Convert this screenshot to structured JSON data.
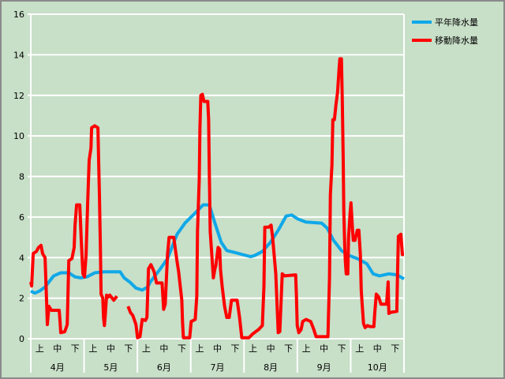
{
  "chart_data": {
    "type": "line",
    "title": "",
    "xlabel": "",
    "ylabel": "",
    "ylim": [
      0,
      16
    ],
    "yticks": [
      "0",
      "2",
      "4",
      "6",
      "8",
      "10",
      "12",
      "14",
      "16"
    ],
    "xlim_days": [
      0,
      214
    ],
    "months": [
      "4月",
      "5月",
      "6月",
      "7月",
      "8月",
      "9月",
      "10月"
    ],
    "periods": [
      "上",
      "中",
      "下"
    ],
    "grid": true,
    "legend_position": "top-right",
    "series": [
      {
        "name": "平年降水量",
        "color": "#10a8e8",
        "points": [
          [
            0,
            2.35
          ],
          [
            2.3,
            2.25
          ],
          [
            5,
            2.35
          ],
          [
            8.2,
            2.55
          ],
          [
            10.4,
            2.8
          ],
          [
            13.1,
            3.1
          ],
          [
            17.2,
            3.25
          ],
          [
            21.8,
            3.25
          ],
          [
            25.4,
            3.05
          ],
          [
            28.6,
            3.0
          ],
          [
            32.2,
            3.05
          ],
          [
            36.7,
            3.25
          ],
          [
            42.2,
            3.3
          ],
          [
            51.2,
            3.3
          ],
          [
            53.5,
            3.0
          ],
          [
            56.7,
            2.8
          ],
          [
            60.3,
            2.5
          ],
          [
            63.9,
            2.4
          ],
          [
            67.1,
            2.55
          ],
          [
            68.5,
            2.8
          ],
          [
            73.9,
            3.4
          ],
          [
            78.4,
            3.95
          ],
          [
            83.9,
            5.15
          ],
          [
            88.4,
            5.7
          ],
          [
            94.3,
            6.2
          ],
          [
            98.8,
            6.6
          ],
          [
            102.4,
            6.6
          ],
          [
            105.6,
            5.7
          ],
          [
            109.2,
            4.75
          ],
          [
            112.4,
            4.35
          ],
          [
            117,
            4.25
          ],
          [
            121.5,
            4.15
          ],
          [
            126,
            4.05
          ],
          [
            128.3,
            4.1
          ],
          [
            132.8,
            4.3
          ],
          [
            137.4,
            4.75
          ],
          [
            141.9,
            5.35
          ],
          [
            146.4,
            6.05
          ],
          [
            149.6,
            6.1
          ],
          [
            153.2,
            5.9
          ],
          [
            157.8,
            5.75
          ],
          [
            166.8,
            5.7
          ],
          [
            170,
            5.45
          ],
          [
            173.6,
            4.85
          ],
          [
            178.1,
            4.35
          ],
          [
            182.7,
            4.1
          ],
          [
            187.2,
            3.95
          ],
          [
            192.7,
            3.7
          ],
          [
            196.3,
            3.2
          ],
          [
            199.9,
            3.1
          ],
          [
            205.3,
            3.2
          ],
          [
            209.9,
            3.15
          ],
          [
            214,
            2.95
          ]
        ]
      },
      {
        "name": "移動降水量",
        "color": "#ff0000",
        "points": [
          [
            0,
            2.8
          ],
          [
            0.5,
            2.6
          ],
          [
            1.4,
            4.2
          ],
          [
            3.2,
            4.3
          ],
          [
            4.5,
            4.5
          ],
          [
            5.9,
            4.6
          ],
          [
            6.8,
            4.2
          ],
          [
            8.2,
            4.0
          ],
          [
            9.1,
            1.8
          ],
          [
            9.5,
            0.7
          ],
          [
            10.4,
            1.6
          ],
          [
            11.8,
            1.4
          ],
          [
            16.3,
            1.4
          ],
          [
            16.8,
            0.85
          ],
          [
            17.2,
            0.3
          ],
          [
            19.5,
            0.35
          ],
          [
            20.9,
            0.7
          ],
          [
            21.8,
            3.85
          ],
          [
            23.6,
            3.95
          ],
          [
            24.9,
            4.5
          ],
          [
            25.4,
            5.6
          ],
          [
            26.3,
            6.6
          ],
          [
            28.1,
            6.6
          ],
          [
            29,
            4.75
          ],
          [
            29.9,
            3.2
          ],
          [
            30.8,
            3.05
          ],
          [
            31.7,
            4.15
          ],
          [
            32.6,
            6.7
          ],
          [
            33.5,
            8.8
          ],
          [
            34.5,
            9.4
          ],
          [
            34.9,
            10.4
          ],
          [
            36.7,
            10.5
          ],
          [
            38.5,
            10.4
          ],
          [
            39.4,
            6.9
          ],
          [
            39.9,
            4.55
          ],
          [
            40.3,
            2.2
          ],
          [
            41.3,
            2.0
          ],
          [
            41.7,
            1.05
          ],
          [
            42.2,
            0.65
          ],
          [
            42.6,
            1.05
          ],
          [
            43.5,
            2.15
          ],
          [
            44.4,
            2.05
          ],
          [
            45.3,
            2.15
          ],
          [
            47.6,
            1.9
          ],
          [
            49.4,
            2.1
          ],
          null,
          [
            55.8,
            1.6
          ],
          [
            57.1,
            1.3
          ],
          [
            58.5,
            1.15
          ],
          [
            60.3,
            0.7
          ],
          [
            61.2,
            0.05
          ],
          [
            62.6,
            0.1
          ],
          [
            63.9,
            0.95
          ],
          [
            65.7,
            0.9
          ],
          [
            66.6,
            1.05
          ],
          [
            67.5,
            3.45
          ],
          [
            68.9,
            3.65
          ],
          [
            70.7,
            3.3
          ],
          [
            72.1,
            2.75
          ],
          [
            75.3,
            2.75
          ],
          [
            76.2,
            1.45
          ],
          [
            77.1,
            1.7
          ],
          [
            78.4,
            4.15
          ],
          [
            79.3,
            5.0
          ],
          [
            82,
            5.0
          ],
          [
            83.9,
            3.8
          ],
          [
            84.8,
            3.3
          ],
          [
            86.6,
            1.9
          ],
          [
            87,
            0.85
          ],
          [
            87.5,
            0.05
          ],
          [
            91.1,
            0.05
          ],
          [
            92,
            0.85
          ],
          [
            94.3,
            0.95
          ],
          [
            95.2,
            2.1
          ],
          [
            95.6,
            5.3
          ],
          [
            96.6,
            7.85
          ],
          [
            97,
            10.4
          ],
          [
            97.5,
            12.0
          ],
          [
            98.4,
            12.05
          ],
          [
            99.3,
            11.7
          ],
          [
            101.5,
            11.7
          ],
          [
            102,
            10.8
          ],
          [
            102.4,
            8.15
          ],
          [
            102.9,
            5.3
          ],
          [
            103.8,
            4.15
          ],
          [
            104.7,
            3.0
          ],
          [
            105.6,
            3.45
          ],
          [
            106.1,
            3.6
          ],
          [
            107.4,
            4.5
          ],
          [
            108.3,
            4.4
          ],
          [
            108.8,
            3.4
          ],
          [
            109.7,
            2.6
          ],
          [
            111.1,
            1.6
          ],
          [
            112.4,
            1.05
          ],
          [
            113.8,
            1.05
          ],
          [
            115.1,
            1.9
          ],
          [
            118.3,
            1.9
          ],
          [
            119.7,
            1.05
          ],
          [
            121,
            0.05
          ],
          [
            125.1,
            0.05
          ],
          [
            127.4,
            0.25
          ],
          [
            130.6,
            0.45
          ],
          [
            132.8,
            0.65
          ],
          [
            133.7,
            2.6
          ],
          [
            134.2,
            5.5
          ],
          [
            136.4,
            5.5
          ],
          [
            137.8,
            5.6
          ],
          [
            138.7,
            4.95
          ],
          [
            140.5,
            3.2
          ],
          [
            141.9,
            0.3
          ],
          [
            142.8,
            0.35
          ],
          [
            144.2,
            3.2
          ],
          [
            145.5,
            3.1
          ],
          [
            151.9,
            3.15
          ],
          [
            152.3,
            2.2
          ],
          [
            152.8,
            0.65
          ],
          [
            153.7,
            0.3
          ],
          [
            155,
            0.45
          ],
          [
            155.9,
            0.85
          ],
          [
            157.8,
            0.95
          ],
          [
            160.5,
            0.85
          ],
          [
            162.3,
            0.45
          ],
          [
            163.6,
            0.1
          ],
          [
            170.4,
            0.1
          ],
          [
            171.3,
            3.0
          ],
          [
            171.8,
            7.1
          ],
          [
            172.7,
            8.6
          ],
          [
            173.2,
            10.8
          ],
          [
            174.1,
            10.8
          ],
          [
            175,
            11.55
          ],
          [
            175.9,
            12.15
          ],
          [
            176.8,
            13.35
          ],
          [
            177.2,
            13.8
          ],
          [
            178.1,
            13.8
          ],
          [
            178.6,
            11.75
          ],
          [
            179.1,
            9.0
          ],
          [
            179.5,
            6.3
          ],
          [
            180,
            4.55
          ],
          [
            180.4,
            3.8
          ],
          [
            180.9,
            3.2
          ],
          [
            181.8,
            3.2
          ],
          [
            182.2,
            4.95
          ],
          [
            183.1,
            6.2
          ],
          [
            183.6,
            6.7
          ],
          [
            184.5,
            5.35
          ],
          [
            184.9,
            4.85
          ],
          [
            185.9,
            4.85
          ],
          [
            187.2,
            5.35
          ],
          [
            188.1,
            5.35
          ],
          [
            189,
            4.15
          ],
          [
            189.5,
            2.4
          ],
          [
            189.9,
            1.85
          ],
          [
            190.8,
            0.75
          ],
          [
            191.7,
            0.55
          ],
          [
            193.1,
            0.65
          ],
          [
            194.5,
            0.6
          ],
          [
            196.7,
            0.6
          ],
          [
            197.2,
            1.25
          ],
          [
            198.1,
            2.2
          ],
          [
            199.5,
            2.05
          ],
          [
            200.8,
            1.7
          ],
          [
            204,
            1.7
          ],
          [
            204.9,
            2.8
          ],
          [
            205.3,
            1.25
          ],
          [
            206.3,
            1.3
          ],
          [
            209.9,
            1.35
          ],
          [
            210.3,
            3.2
          ],
          [
            210.8,
            5.05
          ],
          [
            212.2,
            5.15
          ],
          [
            213.1,
            4.15
          ],
          [
            214,
            4.15
          ]
        ]
      }
    ]
  }
}
